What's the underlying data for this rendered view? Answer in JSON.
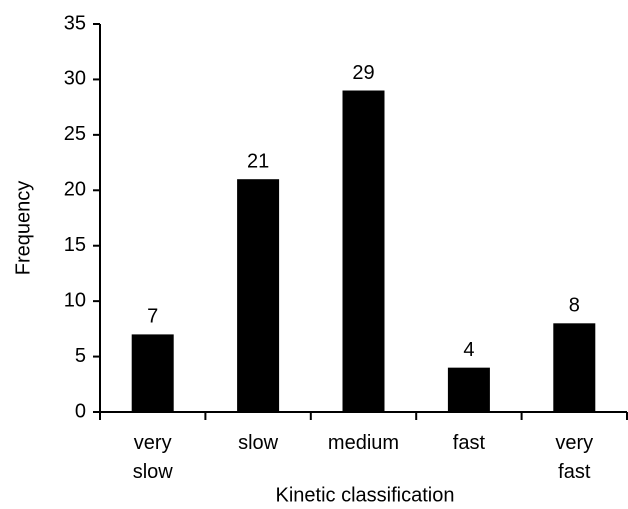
{
  "chart_data": {
    "type": "bar",
    "categories": [
      "very slow",
      "slow",
      "medium",
      "fast",
      "very fast"
    ],
    "values": [
      7,
      21,
      29,
      4,
      8
    ],
    "color": "#000000",
    "ylim": [
      0,
      35
    ],
    "yticks": [
      0,
      5,
      10,
      15,
      20,
      25,
      30,
      35
    ],
    "ylabel": "Frequency",
    "xlabel": "Kinetic classification"
  }
}
